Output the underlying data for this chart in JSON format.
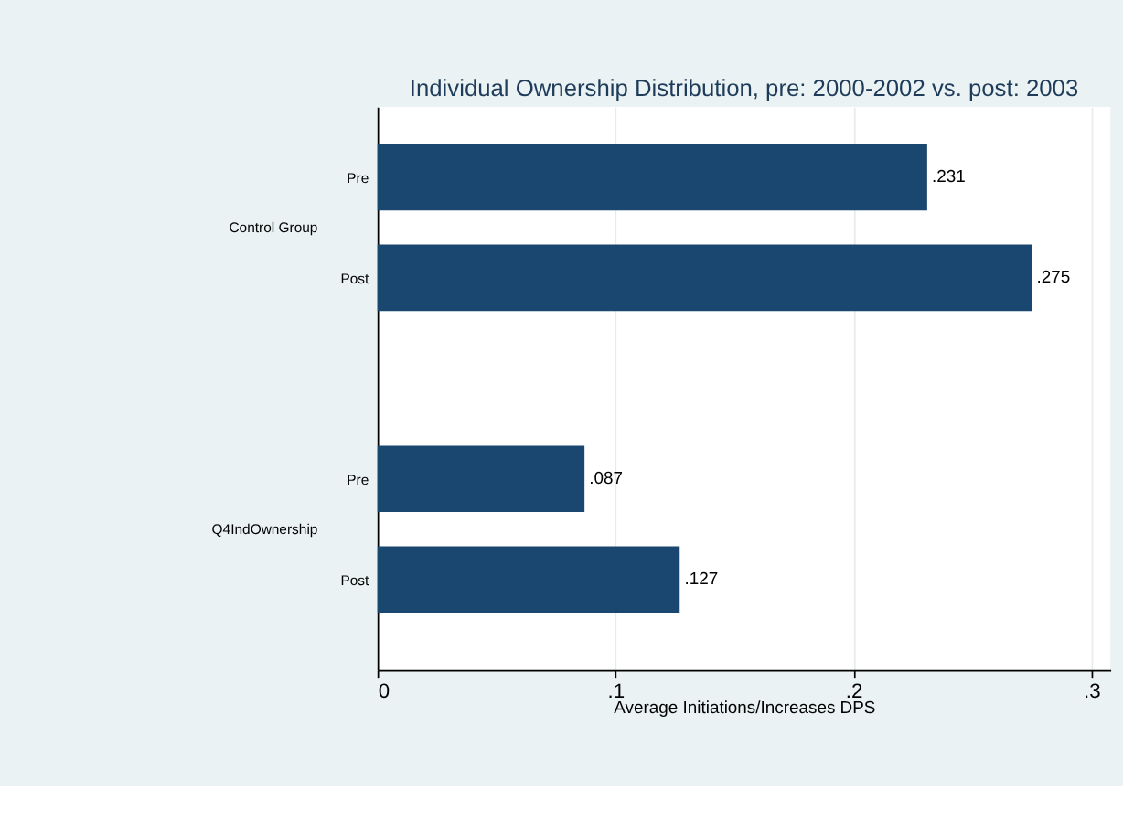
{
  "chart_data": {
    "type": "bar",
    "orientation": "horizontal",
    "title": "Individual Ownership Distribution, pre: 2000-2002 vs. post: 2003",
    "xlabel": "Average Initiations/Increases DPS",
    "categories": [
      "Pre",
      "Post",
      null,
      "Pre",
      "Post"
    ],
    "values": [
      0.231,
      0.275,
      null,
      0.087,
      0.127
    ],
    "value_labels": [
      ".231",
      ".275",
      null,
      ".087",
      ".127"
    ],
    "color": "#1a476f",
    "xlim": [
      0,
      0.308
    ],
    "xticks": [
      0,
      {
        "value": 0.1,
        "label": ".1"
      },
      {
        "value": 0.2,
        "label": ".2"
      },
      {
        "value": 0.3,
        "label": ".3"
      }
    ],
    "grid": "x",
    "annotations": [
      "Control Group",
      "Q4IndOwnership"
    ]
  }
}
